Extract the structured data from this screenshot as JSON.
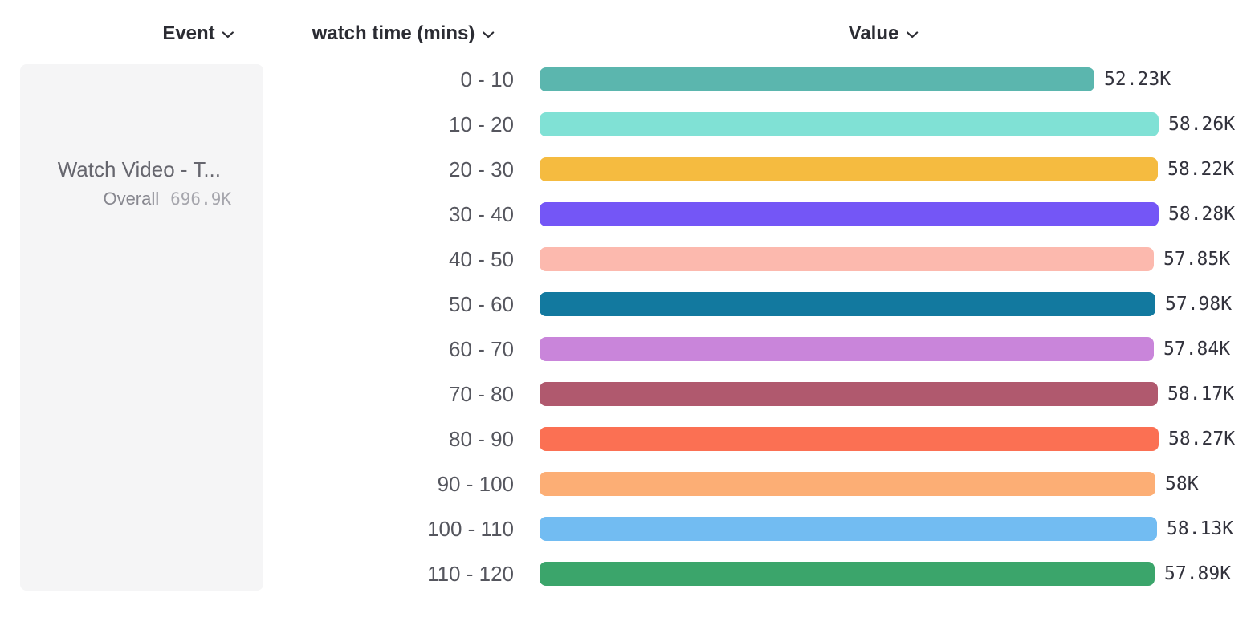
{
  "header": {
    "columns": [
      {
        "label": "Event"
      },
      {
        "label": "watch time (mins)"
      },
      {
        "label": "Value"
      }
    ]
  },
  "event_panel": {
    "title": "Watch Video - T...",
    "overall_label": "Overall",
    "overall_value": "696.9K"
  },
  "chart_data": {
    "type": "bar",
    "orientation": "horizontal",
    "title": "",
    "xlabel": "watch time (mins)",
    "ylabel": "Value",
    "grid": false,
    "legend": "none",
    "xlim": [
      0,
      58280
    ],
    "categories": [
      "0 - 10",
      "10 - 20",
      "20 - 30",
      "30 - 40",
      "40 - 50",
      "50 - 60",
      "60 - 70",
      "70 - 80",
      "80 - 90",
      "90 - 100",
      "100 - 110",
      "110 - 120"
    ],
    "values": [
      52230,
      58260,
      58220,
      58280,
      57850,
      57980,
      57840,
      58170,
      58270,
      58000,
      58130,
      57890
    ],
    "value_labels": [
      "52.23K",
      "58.26K",
      "58.22K",
      "58.28K",
      "57.85K",
      "57.98K",
      "57.84K",
      "58.17K",
      "58.27K",
      "58K",
      "58.13K",
      "57.89K"
    ],
    "colors": [
      "#5bb6ae",
      "#80e1d5",
      "#f5bb40",
      "#7456f6",
      "#fcb9ae",
      "#12799f",
      "#c985da",
      "#b0596e",
      "#fb7053",
      "#fcae75",
      "#72bcf2",
      "#3ba56b"
    ]
  }
}
